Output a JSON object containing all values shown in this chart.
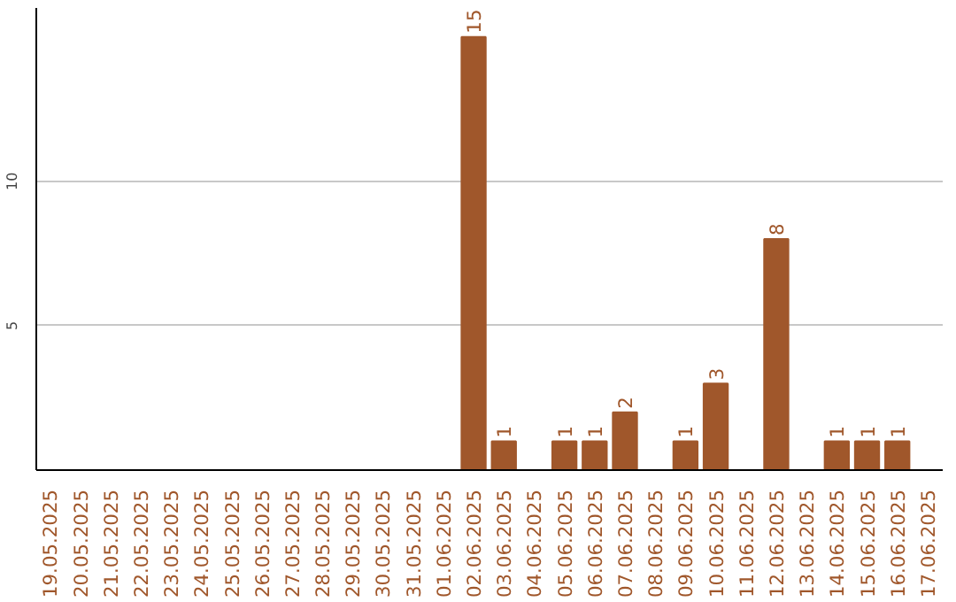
{
  "chart_data": {
    "type": "bar",
    "categories": [
      "19.05.2025",
      "20.05.2025",
      "21.05.2025",
      "22.05.2025",
      "23.05.2025",
      "24.05.2025",
      "25.05.2025",
      "26.05.2025",
      "27.05.2025",
      "28.05.2025",
      "29.05.2025",
      "30.05.2025",
      "31.05.2025",
      "01.06.2025",
      "02.06.2025",
      "03.06.2025",
      "04.06.2025",
      "05.06.2025",
      "06.06.2025",
      "07.06.2025",
      "08.06.2025",
      "09.06.2025",
      "10.06.2025",
      "11.06.2025",
      "12.06.2025",
      "13.06.2025",
      "14.06.2025",
      "15.06.2025",
      "16.06.2025",
      "17.06.2025"
    ],
    "values": [
      0,
      0,
      0,
      0,
      0,
      0,
      0,
      0,
      0,
      0,
      0,
      0,
      0,
      0,
      15,
      1,
      0,
      1,
      1,
      2,
      0,
      1,
      3,
      0,
      8,
      0,
      1,
      1,
      1,
      0
    ],
    "value_labels": [
      null,
      null,
      null,
      null,
      null,
      null,
      null,
      null,
      null,
      null,
      null,
      null,
      null,
      null,
      "15",
      "1",
      null,
      "1",
      "1",
      "2",
      null,
      "1",
      "3",
      null,
      "8",
      null,
      "1",
      "1",
      "1",
      null
    ],
    "color": "#a0572b",
    "ylim": [
      0,
      16
    ],
    "yticks": [
      5,
      10
    ],
    "grid": "y"
  }
}
